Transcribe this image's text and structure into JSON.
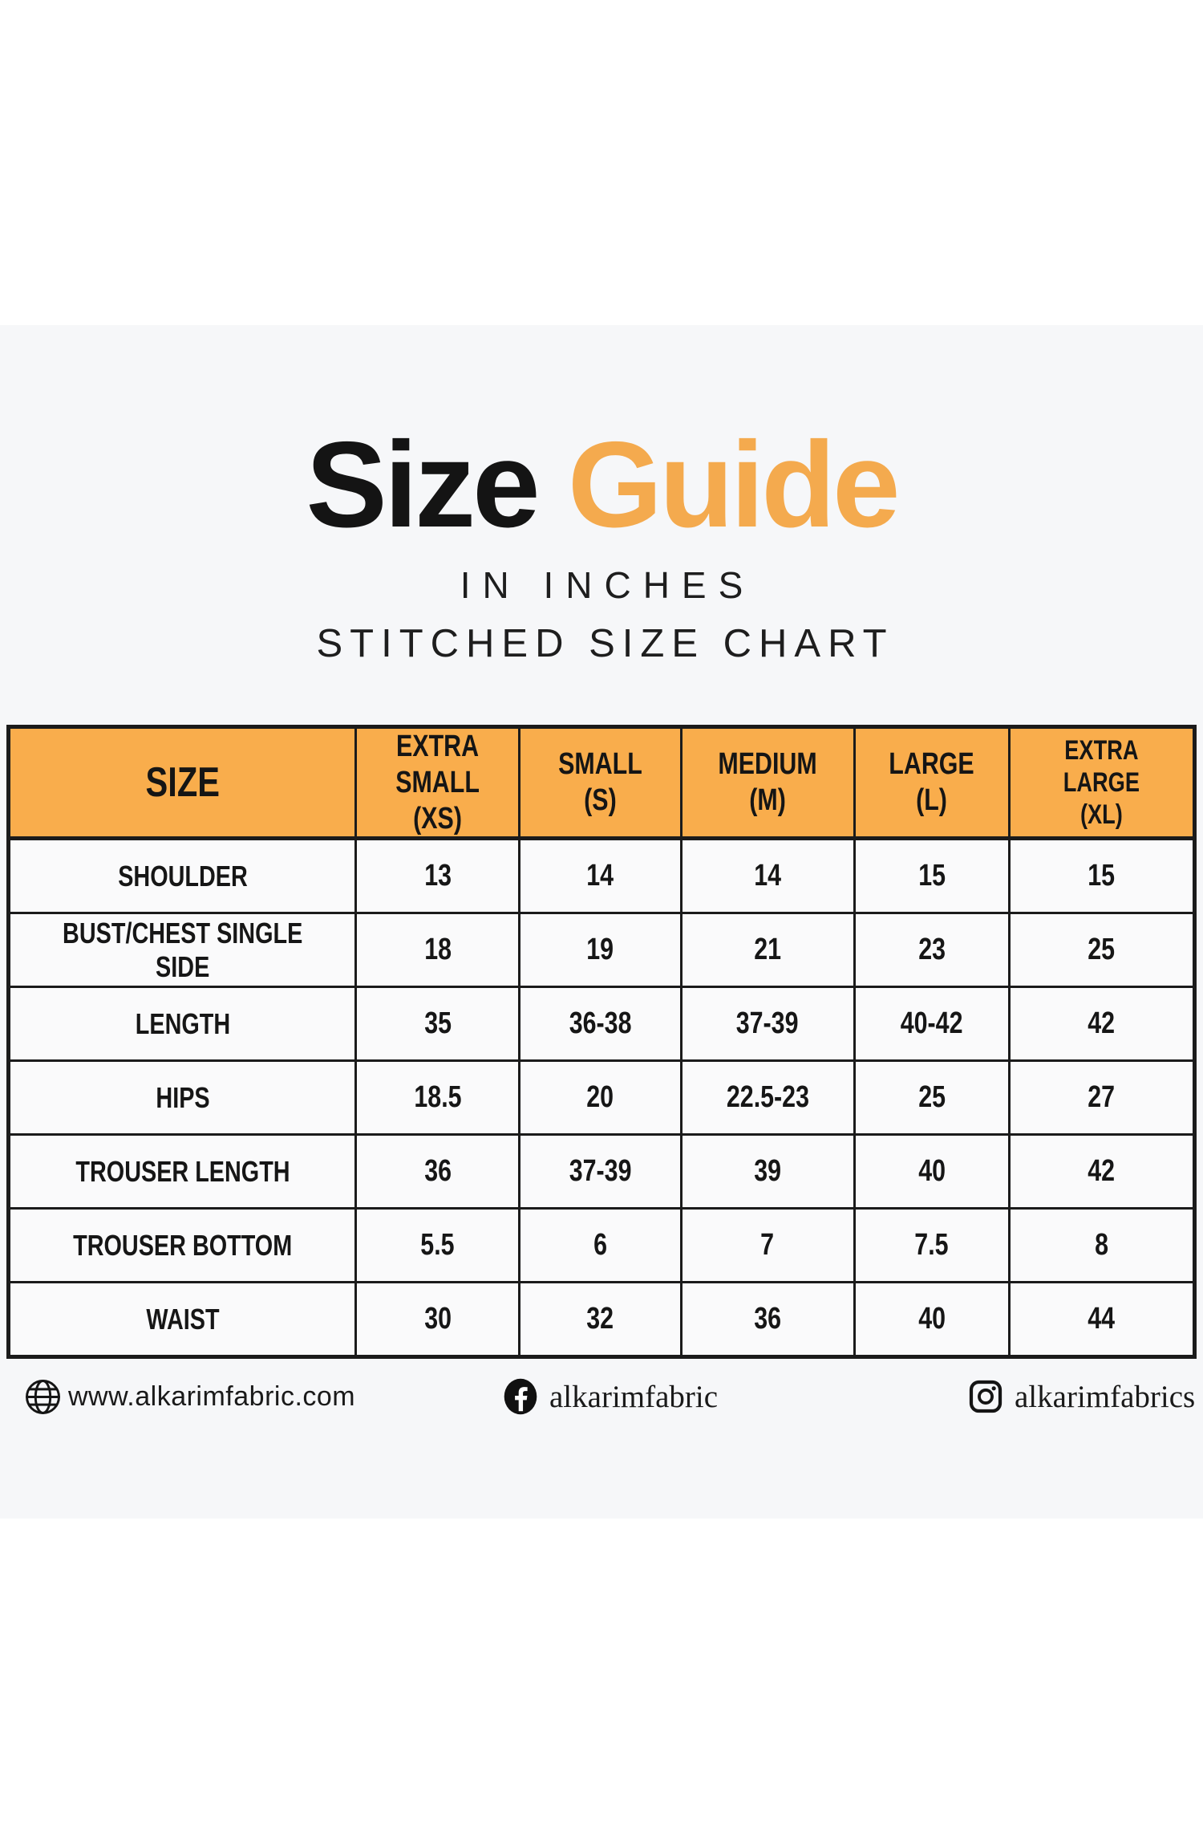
{
  "page": {
    "background": "#ffffff",
    "band_background": "#f6f7f9"
  },
  "title": {
    "word1": "Size",
    "word2": "Guide",
    "word2_color": "#f4aa4e",
    "subtitle1": "IN INCHES",
    "subtitle2": "STITCHED SIZE CHART"
  },
  "chart_data": {
    "type": "table",
    "title": "Size Guide — Stitched Size Chart (inches)",
    "header_bg": "#f9ad4c",
    "columns": [
      "SIZE",
      "EXTRA\nSMALL (XS)",
      "SMALL\n(S)",
      "MEDIUM\n(M)",
      "LARGE\n(L)",
      "EXTRA LARGE\n(XL)"
    ],
    "rows": [
      {
        "label": "SHOULDER",
        "values": [
          "13",
          "14",
          "14",
          "15",
          "15"
        ]
      },
      {
        "label": "BUST/CHEST SINGLE SIDE",
        "values": [
          "18",
          "19",
          "21",
          "23",
          "25"
        ]
      },
      {
        "label": "LENGTH",
        "values": [
          "35",
          "36-38",
          "37-39",
          "40-42",
          "42"
        ]
      },
      {
        "label": "HIPS",
        "values": [
          "18.5",
          "20",
          "22.5-23",
          "25",
          "27"
        ]
      },
      {
        "label": "TROUSER LENGTH",
        "values": [
          "36",
          "37-39",
          "39",
          "40",
          "42"
        ]
      },
      {
        "label": "TROUSER BOTTOM",
        "values": [
          "5.5",
          "6",
          "7",
          "7.5",
          "8"
        ]
      },
      {
        "label": "WAIST",
        "values": [
          "30",
          "32",
          "36",
          "40",
          "44"
        ]
      }
    ]
  },
  "footer": {
    "website": {
      "icon": "globe-icon",
      "text": "www.alkarimfabric.com"
    },
    "facebook": {
      "icon": "facebook-icon",
      "text": "alkarimfabric"
    },
    "instagram": {
      "icon": "instagram-icon",
      "text": "alkarimfabrics"
    }
  }
}
